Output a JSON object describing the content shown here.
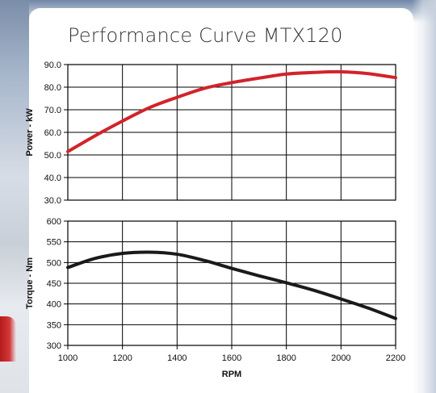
{
  "page": {
    "title": "Performance Curve MTX120"
  },
  "chart_data": [
    {
      "type": "line",
      "title": "Performance Curve MTX120",
      "xlabel": "RPM",
      "ylabel": "Power - kW",
      "xlim": [
        1000,
        2200
      ],
      "ylim": [
        30,
        90
      ],
      "x_ticks": [
        1000,
        1200,
        1400,
        1600,
        1800,
        2000,
        2200
      ],
      "y_ticks": [
        "30.0",
        "40.0",
        "50.0",
        "60.0",
        "70.0",
        "80.0",
        "90.0"
      ],
      "grid": true,
      "series": [
        {
          "color": "#d2232a",
          "x": [
            1000,
            1100,
            1200,
            1300,
            1400,
            1500,
            1600,
            1700,
            1800,
            1900,
            2000,
            2100,
            2200
          ],
          "values": [
            51.5,
            58.5,
            65,
            71,
            75.5,
            79.5,
            82,
            84,
            85.8,
            86.5,
            86.8,
            86,
            84.2
          ]
        }
      ]
    },
    {
      "type": "line",
      "xlabel": "RPM",
      "ylabel": "Torque - Nm",
      "xlim": [
        1000,
        2200
      ],
      "ylim": [
        300,
        600
      ],
      "x_ticks": [
        1000,
        1200,
        1400,
        1600,
        1800,
        2000,
        2200
      ],
      "y_ticks": [
        "300",
        "350",
        "400",
        "450",
        "500",
        "550",
        "600"
      ],
      "grid": true,
      "series": [
        {
          "color": "#1a1a1a",
          "x": [
            1000,
            1100,
            1200,
            1300,
            1400,
            1500,
            1600,
            1700,
            1800,
            1900,
            2000,
            2100,
            2200
          ],
          "values": [
            488,
            510,
            522,
            525,
            520,
            505,
            486,
            468,
            451,
            433,
            412,
            390,
            365
          ]
        }
      ]
    }
  ]
}
